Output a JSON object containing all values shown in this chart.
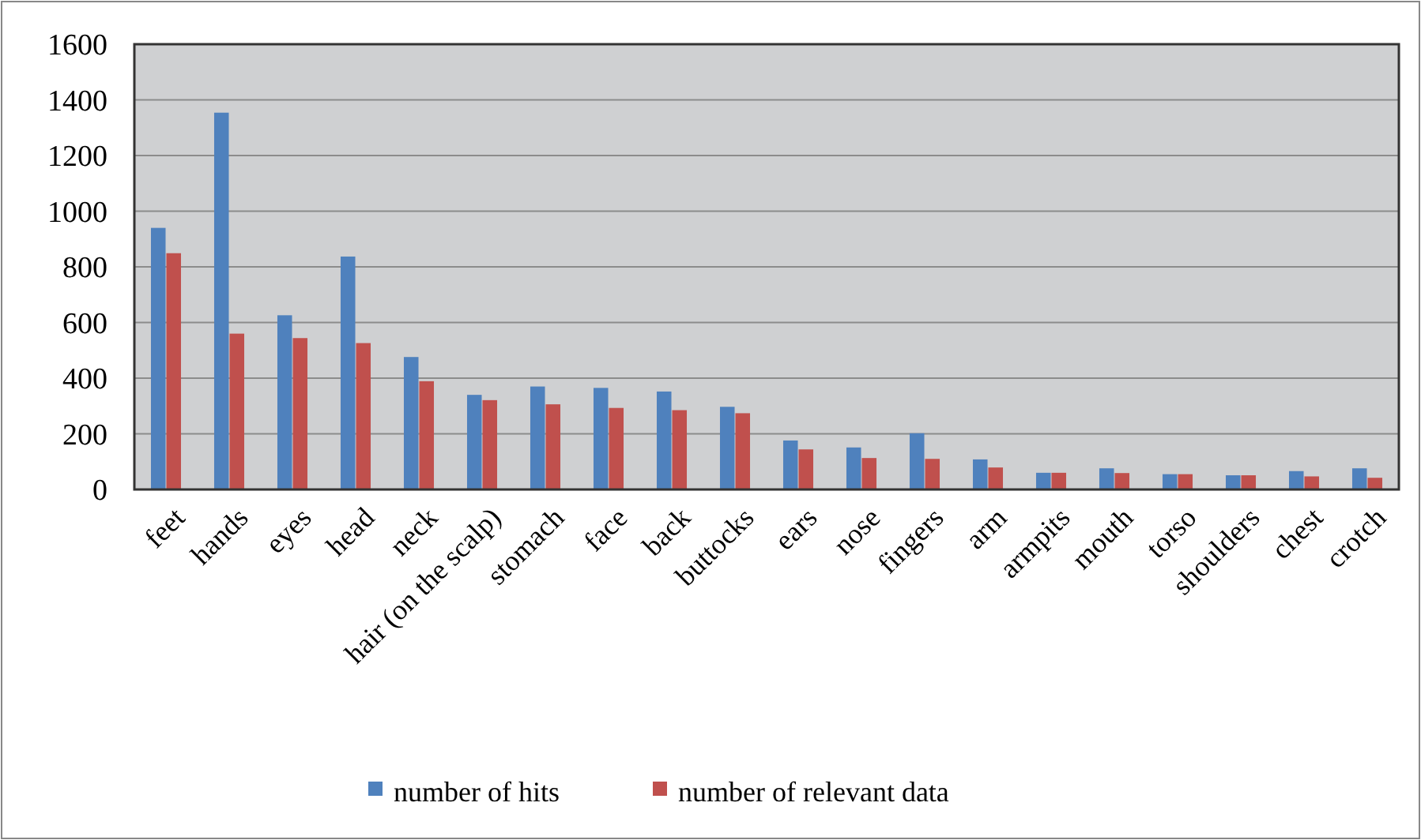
{
  "chart_data": {
    "type": "bar",
    "categories": [
      "feet",
      "hands",
      "eyes",
      "head",
      "neck",
      "hair (on the scalp)",
      "stomach",
      "face",
      "back",
      "buttocks",
      "ears",
      "nose",
      "fingers",
      "arm",
      "armpits",
      "mouth",
      "torso",
      "shoulders",
      "chest",
      "crotch"
    ],
    "series": [
      {
        "name": "number of hits",
        "color": "#4f81bd",
        "values": [
          940,
          1354,
          626,
          837,
          476,
          340,
          370,
          365,
          352,
          297,
          176,
          151,
          202,
          108,
          60,
          76,
          55,
          51,
          66,
          76
        ]
      },
      {
        "name": "number of relevant data",
        "color": "#c0504d",
        "values": [
          849,
          560,
          544,
          526,
          389,
          321,
          306,
          293,
          285,
          274,
          144,
          113,
          110,
          79,
          60,
          59,
          55,
          51,
          47,
          42
        ]
      }
    ],
    "ylim": [
      0,
      1600
    ],
    "yticks": [
      0,
      200,
      400,
      600,
      800,
      1000,
      1200,
      1400,
      1600
    ],
    "grid": "y",
    "legend": "bottom"
  }
}
